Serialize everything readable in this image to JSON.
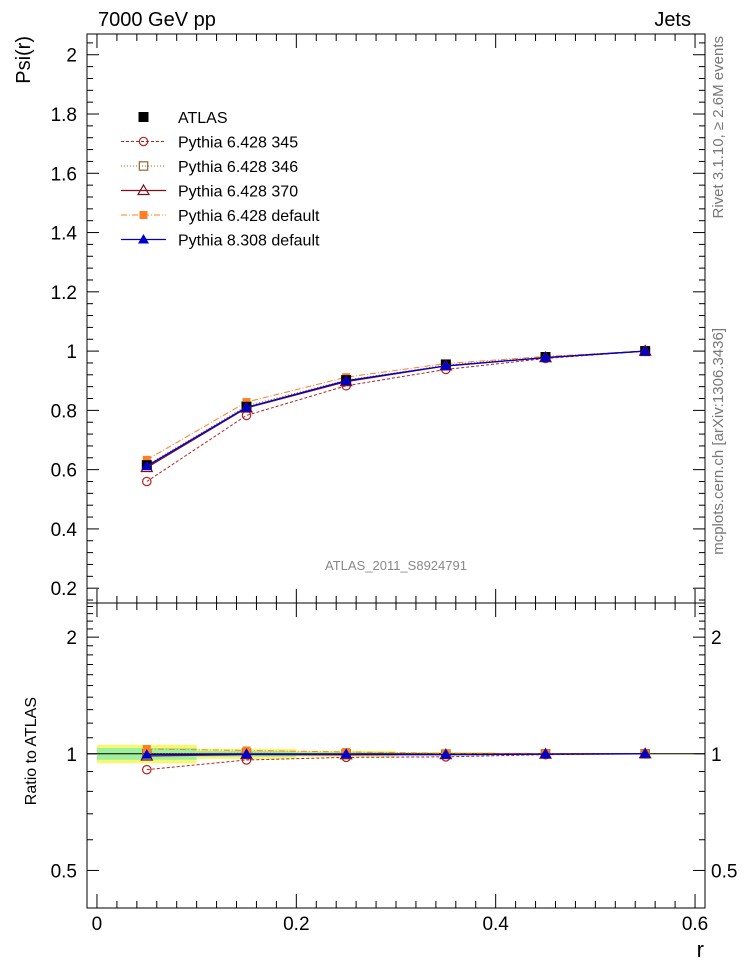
{
  "header": {
    "left": "7000 GeV pp",
    "right": "Jets"
  },
  "side_labels": {
    "rivet": "Rivet 3.1.10, ≥ 2.6M events",
    "mcplots": "mcplots.cern.ch [arXiv:1306.3436]"
  },
  "analysis_id": "ATLAS_2011_S8924791",
  "colors": {
    "atlas": "#000000",
    "p345": "#b22222",
    "p346": "#996633",
    "p370": "#7a0f1e",
    "pdefault": "#ff7f24",
    "p8308": "#0000cc",
    "band_inner": "#9ef09e",
    "band_outer": "#f8f870"
  },
  "chart_data": [
    {
      "type": "line",
      "ylabel": "Psi(r)",
      "xlabel": "r",
      "xlim": [
        -0.01,
        0.61
      ],
      "ylim": [
        0.15,
        2.07
      ],
      "x_ticks": [
        0,
        0.2,
        0.4,
        0.6
      ],
      "x_tick_labels": [
        "0",
        "0.2",
        "0.4",
        "0.6"
      ],
      "y_ticks": [
        0.2,
        0.4,
        0.6,
        0.8,
        1.0,
        1.2,
        1.4,
        1.6,
        1.8,
        2.0
      ],
      "y_tick_labels": [
        "0.2",
        "0.4",
        "0.6",
        "0.8",
        "1",
        "1.2",
        "1.4",
        "1.6",
        "1.8",
        "2"
      ],
      "x": [
        0.05,
        0.15,
        0.25,
        0.35,
        0.45,
        0.55
      ],
      "series": [
        {
          "name": "ATLAS",
          "key": "atlas",
          "values": [
            0.615,
            0.812,
            0.902,
            0.955,
            0.98,
            1.0
          ]
        },
        {
          "name": "Pythia 6.428 345",
          "key": "p345",
          "values": [
            0.56,
            0.783,
            0.883,
            0.938,
            0.975,
            1.0
          ]
        },
        {
          "name": "Pythia 6.428 346",
          "key": "p346",
          "values": [
            0.615,
            0.815,
            0.902,
            0.953,
            0.98,
            1.0
          ]
        },
        {
          "name": "Pythia 6.428 370",
          "key": "p370",
          "values": [
            0.607,
            0.808,
            0.897,
            0.95,
            0.978,
            1.0
          ]
        },
        {
          "name": "Pythia 6.428 default",
          "key": "pdefault",
          "values": [
            0.633,
            0.828,
            0.912,
            0.958,
            0.982,
            1.0
          ]
        },
        {
          "name": "Pythia 8.308 default",
          "key": "p8308",
          "values": [
            0.612,
            0.81,
            0.9,
            0.95,
            0.978,
            1.0
          ]
        }
      ],
      "legend_position": "top-left",
      "grid": false
    },
    {
      "type": "line",
      "ylabel": "Ratio to ATLAS",
      "xlabel": "r",
      "scale": "log",
      "ylim": [
        0.4,
        2.45
      ],
      "y_ticks": [
        0.5,
        1,
        2
      ],
      "y_tick_labels": [
        "0.5",
        "1",
        "2"
      ],
      "x": [
        0.05,
        0.15,
        0.25,
        0.35,
        0.45,
        0.55
      ],
      "bin_edges": [
        0,
        0.1,
        0.2,
        0.3,
        0.4,
        0.5,
        0.6
      ],
      "band_inner": [
        0.035,
        0.017,
        0.01,
        0.006,
        0.004,
        0.002
      ],
      "band_outer": [
        0.055,
        0.03,
        0.018,
        0.01,
        0.006,
        0.003
      ],
      "series": [
        {
          "name": "Pythia 6.428 345",
          "key": "p345",
          "values": [
            0.91,
            0.964,
            0.979,
            0.982,
            0.995,
            1.0
          ]
        },
        {
          "name": "Pythia 6.428 346",
          "key": "p346",
          "values": [
            1.0,
            1.004,
            1.0,
            0.998,
            1.0,
            1.0
          ]
        },
        {
          "name": "Pythia 6.428 370",
          "key": "p370",
          "values": [
            0.987,
            0.995,
            0.994,
            0.995,
            0.998,
            1.0
          ]
        },
        {
          "name": "Pythia 6.428 default",
          "key": "pdefault",
          "values": [
            1.029,
            1.02,
            1.011,
            1.003,
            1.002,
            1.0
          ]
        },
        {
          "name": "Pythia 8.308 default",
          "key": "p8308",
          "values": [
            0.995,
            0.998,
            0.998,
            0.995,
            0.998,
            1.0
          ]
        }
      ]
    }
  ]
}
